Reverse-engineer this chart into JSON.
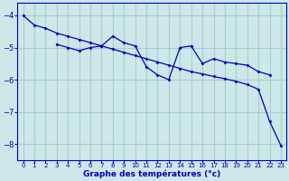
{
  "xlabel": "Graphe des températures (°c)",
  "background_color": "#cce8e8",
  "grid_color": "#aacece",
  "line_color": "#0000bb",
  "xlim": [
    -0.5,
    23.5
  ],
  "ylim": [
    -8.5,
    -3.6
  ],
  "yticks": [
    -8,
    -7,
    -6,
    -5,
    -4
  ],
  "xticks": [
    0,
    1,
    2,
    3,
    4,
    5,
    6,
    7,
    8,
    9,
    10,
    11,
    12,
    13,
    14,
    15,
    16,
    17,
    18,
    19,
    20,
    21,
    22,
    23
  ],
  "line1_x": [
    0,
    1,
    2,
    3,
    4,
    5,
    6,
    7,
    8,
    9,
    10,
    11,
    12,
    13,
    14,
    15,
    16,
    17,
    18,
    19,
    20,
    21,
    22,
    23
  ],
  "line1_y": [
    -4.0,
    -4.3,
    -4.4,
    -4.55,
    -4.65,
    -4.75,
    -4.85,
    -4.95,
    -5.05,
    -5.15,
    -5.25,
    -5.35,
    -5.45,
    -5.55,
    -5.65,
    -5.75,
    -5.82,
    -5.9,
    -5.97,
    -6.05,
    -6.15,
    -6.3,
    -7.3,
    -8.05
  ],
  "line2_x": [
    3,
    4,
    5,
    6,
    7,
    8,
    9,
    10,
    11,
    12,
    13,
    14,
    15,
    16,
    17,
    18,
    19,
    20,
    21,
    22
  ],
  "line2_y": [
    -4.9,
    -5.0,
    -5.1,
    -5.0,
    -4.95,
    -4.65,
    -4.85,
    -4.95,
    -5.6,
    -5.85,
    -6.0,
    -5.0,
    -4.95,
    -5.5,
    -5.35,
    -5.45,
    -5.5,
    -5.55,
    -5.75,
    -5.85
  ]
}
